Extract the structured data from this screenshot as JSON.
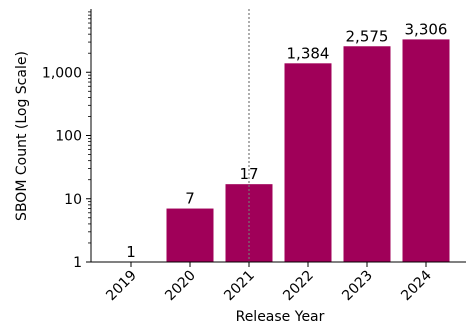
{
  "chart_data": {
    "type": "bar",
    "title": "",
    "xlabel": "Release Year",
    "ylabel": "SBOM Count (Log Scale)",
    "y_scale": "log",
    "ylim": [
      1,
      10000
    ],
    "y_ticks": [
      {
        "value": 1,
        "label": "1"
      },
      {
        "value": 10,
        "label": "10"
      },
      {
        "value": 100,
        "label": "100"
      },
      {
        "value": 1000,
        "label": "1,000"
      }
    ],
    "categories": [
      "2019",
      "2020",
      "2021",
      "2022",
      "2023",
      "2024"
    ],
    "values": [
      1,
      7,
      17,
      1384,
      2575,
      3306
    ],
    "value_labels": [
      "1",
      "7",
      "17",
      "1,384",
      "2,575",
      "3,306"
    ],
    "reference_line": {
      "x_category": "2021",
      "style": "dotted",
      "color": "#777777"
    },
    "bar_color": "#a00059",
    "grid": false,
    "legend": "none"
  }
}
